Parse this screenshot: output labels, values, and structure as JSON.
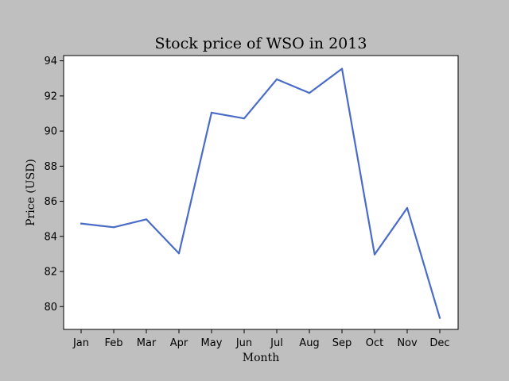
{
  "chart_data": {
    "type": "line",
    "title": "Stock price of WSO in 2013",
    "xlabel": "Month",
    "ylabel": "Price (USD)",
    "categories": [
      "Jan",
      "Feb",
      "Mar",
      "Apr",
      "May",
      "Jun",
      "Jul",
      "Aug",
      "Sep",
      "Oct",
      "Nov",
      "Dec"
    ],
    "series": [
      {
        "values": [
          84.73,
          84.52,
          84.97,
          83.03,
          91.05,
          90.72,
          92.95,
          92.17,
          93.55,
          82.97,
          85.62,
          79.35
        ],
        "color": "#4a6cc8"
      }
    ],
    "ylim": [
      78.7,
      94.3
    ],
    "yticks": [
      80,
      82,
      84,
      86,
      88,
      90,
      92,
      94
    ],
    "grid": false,
    "legend": "none"
  },
  "colors": {
    "figure_background": "#bfbfbf",
    "plot_background": "#ffffff",
    "line": "#4a6cc8",
    "axis": "#000000"
  }
}
